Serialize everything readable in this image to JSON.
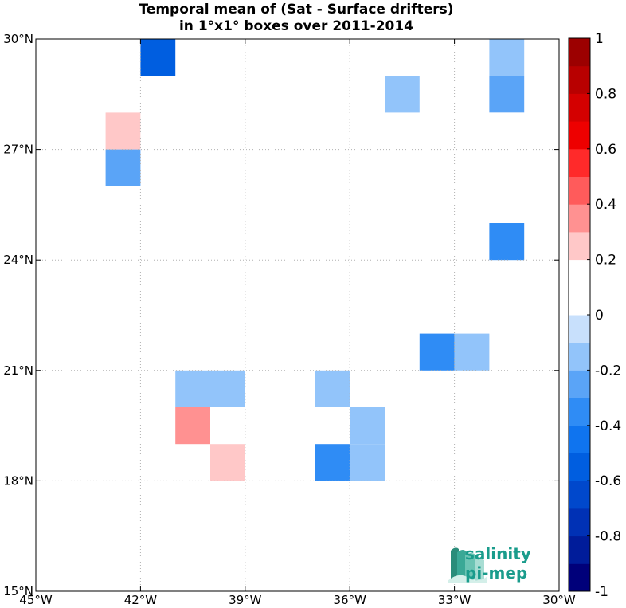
{
  "chart_data": {
    "type": "heatmap",
    "title_line1": "Temporal mean of (Sat - Surface drifters)",
    "title_line2": "in 1°x1° boxes over 2011-2014",
    "xlim": [
      -45,
      -30
    ],
    "ylim": [
      15,
      30
    ],
    "x_ticks": [
      {
        "value": -45,
        "label": "45°W"
      },
      {
        "value": -42,
        "label": "42°W"
      },
      {
        "value": -39,
        "label": "39°W"
      },
      {
        "value": -36,
        "label": "36°W"
      },
      {
        "value": -33,
        "label": "33°W"
      },
      {
        "value": -30,
        "label": "30°W"
      }
    ],
    "y_ticks": [
      {
        "value": 15,
        "label": "15°N"
      },
      {
        "value": 18,
        "label": "18°N"
      },
      {
        "value": 21,
        "label": "21°N"
      },
      {
        "value": 24,
        "label": "24°N"
      },
      {
        "value": 27,
        "label": "27°N"
      },
      {
        "value": 30,
        "label": "30°N"
      }
    ],
    "grid": true,
    "cell_size_deg": 1,
    "colorbar": {
      "range": [
        -1,
        1
      ],
      "levels": 20,
      "placement": "right",
      "ticks": [
        {
          "value": 1,
          "label": "1"
        },
        {
          "value": 0.8,
          "label": "0.8"
        },
        {
          "value": 0.6,
          "label": "0.6"
        },
        {
          "value": 0.4,
          "label": "0.4"
        },
        {
          "value": 0.2,
          "label": "0.2"
        },
        {
          "value": 0,
          "label": "0"
        },
        {
          "value": -0.2,
          "label": "-0.2"
        },
        {
          "value": -0.4,
          "label": "-0.4"
        },
        {
          "value": -0.6,
          "label": "-0.6"
        },
        {
          "value": -0.8,
          "label": "-0.8"
        },
        {
          "value": -1,
          "label": "-1"
        }
      ],
      "colors": [
        "#00007a",
        "#001c9a",
        "#0031b5",
        "#0048cc",
        "#005ee0",
        "#0f74ef",
        "#2f8cf5",
        "#5aa4f7",
        "#92c4fa",
        "#c8e0fc",
        "#ffffff",
        "#ffffff",
        "#ffc8c8",
        "#ff9191",
        "#ff5b5b",
        "#ff2a2a",
        "#ee0000",
        "#d40000",
        "#b80000",
        "#9c0000"
      ]
    },
    "cells": [
      {
        "lon": -45,
        "lat": 29,
        "value": 0.15
      },
      {
        "lon": -44,
        "lat": 29,
        "value": 0.15
      },
      {
        "lon": -42,
        "lat": 29,
        "value": -0.55
      },
      {
        "lon": -32,
        "lat": 29,
        "value": -0.15
      },
      {
        "lon": -43,
        "lat": 28,
        "value": 0.15
      },
      {
        "lon": -42,
        "lat": 28,
        "value": 0.15
      },
      {
        "lon": -37,
        "lat": 28,
        "value": 0.15
      },
      {
        "lon": -36,
        "lat": 28,
        "value": 0.15
      },
      {
        "lon": -35,
        "lat": 28,
        "value": -0.15
      },
      {
        "lon": -32,
        "lat": 28,
        "value": -0.25
      },
      {
        "lon": -43,
        "lat": 27,
        "value": 0.25
      },
      {
        "lon": -42,
        "lat": 27,
        "value": 0.15
      },
      {
        "lon": -32,
        "lat": 27,
        "value": 0.15
      },
      {
        "lon": -43,
        "lat": 26,
        "value": -0.25
      },
      {
        "lon": -34,
        "lat": 25,
        "value": 0.15
      },
      {
        "lon": -32,
        "lat": 24,
        "value": -0.35
      },
      {
        "lon": -45,
        "lat": 23,
        "value": 0.15
      },
      {
        "lon": -33,
        "lat": 23,
        "value": 0.15
      },
      {
        "lon": -45,
        "lat": 21,
        "value": 0.15
      },
      {
        "lon": -39,
        "lat": 21,
        "value": 0.15
      },
      {
        "lon": -34,
        "lat": 21,
        "value": -0.35
      },
      {
        "lon": -33,
        "lat": 21,
        "value": -0.15
      },
      {
        "lon": -45,
        "lat": 20,
        "value": 0.15
      },
      {
        "lon": -41,
        "lat": 20,
        "value": -0.15
      },
      {
        "lon": -40,
        "lat": 20,
        "value": -0.15
      },
      {
        "lon": -37,
        "lat": 20,
        "value": -0.15
      },
      {
        "lon": -36,
        "lat": 20,
        "value": 0.15
      },
      {
        "lon": -43,
        "lat": 19,
        "value": 0.15
      },
      {
        "lon": -41,
        "lat": 19,
        "value": 0.35
      },
      {
        "lon": -36,
        "lat": 19,
        "value": -0.15
      },
      {
        "lon": -40,
        "lat": 18,
        "value": 0.25
      },
      {
        "lon": -39,
        "lat": 18,
        "value": 0.15
      },
      {
        "lon": -37,
        "lat": 18,
        "value": -0.35
      },
      {
        "lon": -36,
        "lat": 18,
        "value": -0.15
      }
    ]
  },
  "logo": {
    "line1": "salinity",
    "line2": "pi-mep"
  }
}
